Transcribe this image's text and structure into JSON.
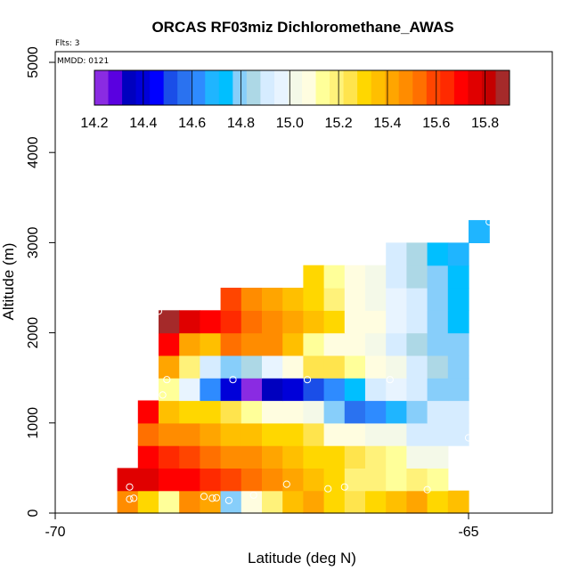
{
  "chart_data": {
    "type": "heatmap",
    "title": "ORCAS RF03miz Dichloromethane_AWAS",
    "flights_note": "Flts: 3",
    "date_note": "MMDD: 0121",
    "xlabel": "Latitude (deg N)",
    "ylabel": "Altitude (m)",
    "xlim": [
      -70,
      -64
    ],
    "ylim": [
      0,
      5200
    ],
    "xticks": [
      -70,
      -65
    ],
    "xtick_labels": [
      "-70",
      "-65"
    ],
    "yticks": [
      0,
      1000,
      2000,
      3000,
      4000,
      5000
    ],
    "ytick_labels": [
      "0",
      "1000",
      "2000",
      "3000",
      "4000",
      "5000"
    ],
    "grid": false,
    "colorbar": {
      "min": 14.2,
      "max": 15.9,
      "ticks": [
        14.2,
        14.4,
        14.6,
        14.8,
        15.0,
        15.2,
        15.4,
        15.6,
        15.8
      ],
      "tick_labels": [
        "14.2",
        "14.4",
        "14.6",
        "14.8",
        "15.0",
        "15.2",
        "15.4",
        "15.6",
        "15.8"
      ],
      "colors": [
        "#8a2be2",
        "#5a00e0",
        "#0000bf",
        "#0000d9",
        "#0000ff",
        "#1a4ee8",
        "#2a72f0",
        "#2e8bff",
        "#1fb5ff",
        "#00bfff",
        "#87cefa",
        "#add8e6",
        "#d6ecff",
        "#e8f4ff",
        "#f4f9e8",
        "#fffde0",
        "#ffff99",
        "#fff27a",
        "#ffe44d",
        "#ffd700",
        "#ffbf00",
        "#ffa500",
        "#ff8c00",
        "#ff7000",
        "#ff4500",
        "#ff2a00",
        "#ff0000",
        "#e00000",
        "#c40000",
        "#a52a2a"
      ]
    },
    "cell_dx": 0.25,
    "cell_dy": 250,
    "cells": [
      {
        "lat": -69.25,
        "alt": 0,
        "value": 15.45
      },
      {
        "lat": -69.0,
        "alt": 0,
        "value": 15.3
      },
      {
        "lat": -68.75,
        "alt": 0,
        "value": 15.12
      },
      {
        "lat": -68.5,
        "alt": 0,
        "value": 15.45
      },
      {
        "lat": -68.25,
        "alt": 0,
        "value": 15.4
      },
      {
        "lat": -68.0,
        "alt": 0,
        "value": 14.8
      },
      {
        "lat": -67.75,
        "alt": 0,
        "value": 15.05
      },
      {
        "lat": -67.5,
        "alt": 0,
        "value": 15.2
      },
      {
        "lat": -67.25,
        "alt": 0,
        "value": 15.35
      },
      {
        "lat": -67.0,
        "alt": 0,
        "value": 15.4
      },
      {
        "lat": -66.75,
        "alt": 0,
        "value": 15.3
      },
      {
        "lat": -66.5,
        "alt": 0,
        "value": 15.25
      },
      {
        "lat": -66.25,
        "alt": 0,
        "value": 15.3
      },
      {
        "lat": -66.0,
        "alt": 0,
        "value": 15.35
      },
      {
        "lat": -65.75,
        "alt": 0,
        "value": 15.4
      },
      {
        "lat": -65.5,
        "alt": 0,
        "value": 15.3
      },
      {
        "lat": -65.25,
        "alt": 0,
        "value": 15.35
      },
      {
        "lat": -69.25,
        "alt": 250,
        "value": 15.78
      },
      {
        "lat": -69.0,
        "alt": 250,
        "value": 15.75
      },
      {
        "lat": -68.75,
        "alt": 250,
        "value": 15.7
      },
      {
        "lat": -68.5,
        "alt": 250,
        "value": 15.68
      },
      {
        "lat": -68.25,
        "alt": 250,
        "value": 15.62
      },
      {
        "lat": -68.0,
        "alt": 250,
        "value": 15.57
      },
      {
        "lat": -67.75,
        "alt": 250,
        "value": 15.52
      },
      {
        "lat": -67.5,
        "alt": 250,
        "value": 15.47
      },
      {
        "lat": -67.25,
        "alt": 250,
        "value": 15.42
      },
      {
        "lat": -67.0,
        "alt": 250,
        "value": 15.37
      },
      {
        "lat": -66.75,
        "alt": 250,
        "value": 15.32
      },
      {
        "lat": -66.5,
        "alt": 250,
        "value": 15.2
      },
      {
        "lat": -66.25,
        "alt": 250,
        "value": 15.18
      },
      {
        "lat": -66.0,
        "alt": 250,
        "value": 15.15
      },
      {
        "lat": -65.75,
        "alt": 250,
        "value": 15.17
      },
      {
        "lat": -65.5,
        "alt": 250,
        "value": 15.16
      },
      {
        "lat": -69.0,
        "alt": 500,
        "value": 15.68
      },
      {
        "lat": -68.75,
        "alt": 500,
        "value": 15.65
      },
      {
        "lat": -68.5,
        "alt": 500,
        "value": 15.6
      },
      {
        "lat": -68.25,
        "alt": 500,
        "value": 15.55
      },
      {
        "lat": -68.0,
        "alt": 500,
        "value": 15.5
      },
      {
        "lat": -67.75,
        "alt": 500,
        "value": 15.45
      },
      {
        "lat": -67.5,
        "alt": 500,
        "value": 15.4
      },
      {
        "lat": -67.25,
        "alt": 500,
        "value": 15.37
      },
      {
        "lat": -67.0,
        "alt": 500,
        "value": 15.32
      },
      {
        "lat": -66.75,
        "alt": 500,
        "value": 15.28
      },
      {
        "lat": -66.5,
        "alt": 500,
        "value": 15.25
      },
      {
        "lat": -66.25,
        "alt": 500,
        "value": 15.2
      },
      {
        "lat": -66.0,
        "alt": 500,
        "value": 15.12
      },
      {
        "lat": -65.75,
        "alt": 500,
        "value": 15.0
      },
      {
        "lat": -65.5,
        "alt": 500,
        "value": 15.0
      },
      {
        "lat": -69.0,
        "alt": 750,
        "value": 15.52
      },
      {
        "lat": -68.75,
        "alt": 750,
        "value": 15.5
      },
      {
        "lat": -68.5,
        "alt": 750,
        "value": 15.47
      },
      {
        "lat": -68.25,
        "alt": 750,
        "value": 15.42
      },
      {
        "lat": -68.0,
        "alt": 750,
        "value": 15.38
      },
      {
        "lat": -67.75,
        "alt": 750,
        "value": 15.35
      },
      {
        "lat": -67.5,
        "alt": 750,
        "value": 15.3
      },
      {
        "lat": -67.25,
        "alt": 750,
        "value": 15.28
      },
      {
        "lat": -67.0,
        "alt": 750,
        "value": 15.22
      },
      {
        "lat": -66.75,
        "alt": 750,
        "value": 15.1
      },
      {
        "lat": -66.5,
        "alt": 750,
        "value": 15.06
      },
      {
        "lat": -66.25,
        "alt": 750,
        "value": 15.0
      },
      {
        "lat": -66.0,
        "alt": 750,
        "value": 15.0
      },
      {
        "lat": -65.75,
        "alt": 750,
        "value": 14.88
      },
      {
        "lat": -65.5,
        "alt": 750,
        "value": 14.93
      },
      {
        "lat": -65.25,
        "alt": 750,
        "value": 14.93
      },
      {
        "lat": -69.0,
        "alt": 1000,
        "value": 15.72
      },
      {
        "lat": -68.75,
        "alt": 1000,
        "value": 15.38
      },
      {
        "lat": -68.5,
        "alt": 1000,
        "value": 15.33
      },
      {
        "lat": -68.25,
        "alt": 1000,
        "value": 15.28
      },
      {
        "lat": -68.0,
        "alt": 1000,
        "value": 15.22
      },
      {
        "lat": -67.75,
        "alt": 1000,
        "value": 15.15
      },
      {
        "lat": -67.5,
        "alt": 1000,
        "value": 15.1
      },
      {
        "lat": -67.25,
        "alt": 1000,
        "value": 15.05
      },
      {
        "lat": -67.0,
        "alt": 1000,
        "value": 15.0
      },
      {
        "lat": -66.75,
        "alt": 1000,
        "value": 14.78
      },
      {
        "lat": -66.5,
        "alt": 1000,
        "value": 14.55
      },
      {
        "lat": -66.25,
        "alt": 1000,
        "value": 14.62
      },
      {
        "lat": -66.0,
        "alt": 1000,
        "value": 14.7
      },
      {
        "lat": -65.75,
        "alt": 1000,
        "value": 14.8
      },
      {
        "lat": -65.5,
        "alt": 1000,
        "value": 14.88
      },
      {
        "lat": -65.25,
        "alt": 1000,
        "value": 14.88
      },
      {
        "lat": -68.75,
        "alt": 1250,
        "value": 15.12
      },
      {
        "lat": -68.5,
        "alt": 1250,
        "value": 14.98
      },
      {
        "lat": -68.25,
        "alt": 1250,
        "value": 14.6
      },
      {
        "lat": -68.0,
        "alt": 1250,
        "value": 14.4
      },
      {
        "lat": -67.75,
        "alt": 1250,
        "value": 14.25
      },
      {
        "lat": -67.5,
        "alt": 1250,
        "value": 14.35
      },
      {
        "lat": -67.25,
        "alt": 1250,
        "value": 14.4
      },
      {
        "lat": -67.0,
        "alt": 1250,
        "value": 14.5
      },
      {
        "lat": -66.75,
        "alt": 1250,
        "value": 14.65
      },
      {
        "lat": -66.5,
        "alt": 1250,
        "value": 14.72
      },
      {
        "lat": -66.25,
        "alt": 1250,
        "value": 14.88
      },
      {
        "lat": -66.0,
        "alt": 1250,
        "value": 14.97
      },
      {
        "lat": -65.75,
        "alt": 1250,
        "value": 14.9
      },
      {
        "lat": -65.5,
        "alt": 1250,
        "value": 14.8
      },
      {
        "lat": -65.25,
        "alt": 1250,
        "value": 14.82
      },
      {
        "lat": -68.75,
        "alt": 1500,
        "value": 15.42
      },
      {
        "lat": -68.5,
        "alt": 1500,
        "value": 15.18
      },
      {
        "lat": -68.25,
        "alt": 1500,
        "value": 14.92
      },
      {
        "lat": -68.0,
        "alt": 1500,
        "value": 14.78
      },
      {
        "lat": -67.75,
        "alt": 1500,
        "value": 14.85
      },
      {
        "lat": -67.5,
        "alt": 1500,
        "value": 14.97
      },
      {
        "lat": -67.25,
        "alt": 1500,
        "value": 15.07
      },
      {
        "lat": -67.0,
        "alt": 1500,
        "value": 15.22
      },
      {
        "lat": -66.75,
        "alt": 1500,
        "value": 15.22
      },
      {
        "lat": -66.5,
        "alt": 1500,
        "value": 15.14
      },
      {
        "lat": -66.25,
        "alt": 1500,
        "value": 15.1
      },
      {
        "lat": -66.0,
        "alt": 1500,
        "value": 15.02
      },
      {
        "lat": -65.75,
        "alt": 1500,
        "value": 14.9
      },
      {
        "lat": -65.5,
        "alt": 1500,
        "value": 14.85
      },
      {
        "lat": -65.25,
        "alt": 1500,
        "value": 14.8
      },
      {
        "lat": -68.75,
        "alt": 1750,
        "value": 15.68
      },
      {
        "lat": -68.5,
        "alt": 1750,
        "value": 15.4
      },
      {
        "lat": -68.25,
        "alt": 1750,
        "value": 15.38
      },
      {
        "lat": -68.0,
        "alt": 1750,
        "value": 15.55
      },
      {
        "lat": -67.75,
        "alt": 1750,
        "value": 15.5
      },
      {
        "lat": -67.5,
        "alt": 1750,
        "value": 15.45
      },
      {
        "lat": -67.25,
        "alt": 1750,
        "value": 15.35
      },
      {
        "lat": -67.0,
        "alt": 1750,
        "value": 15.15
      },
      {
        "lat": -66.75,
        "alt": 1750,
        "value": 15.1
      },
      {
        "lat": -66.5,
        "alt": 1750,
        "value": 15.05
      },
      {
        "lat": -66.25,
        "alt": 1750,
        "value": 15.0
      },
      {
        "lat": -66.0,
        "alt": 1750,
        "value": 14.93
      },
      {
        "lat": -65.75,
        "alt": 1750,
        "value": 14.86
      },
      {
        "lat": -65.5,
        "alt": 1750,
        "value": 14.8
      },
      {
        "lat": -65.25,
        "alt": 1750,
        "value": 14.78
      },
      {
        "lat": -68.75,
        "alt": 2000,
        "value": 15.87
      },
      {
        "lat": -68.5,
        "alt": 2000,
        "value": 15.77
      },
      {
        "lat": -68.25,
        "alt": 2000,
        "value": 15.72
      },
      {
        "lat": -68.0,
        "alt": 2000,
        "value": 15.65
      },
      {
        "lat": -67.75,
        "alt": 2000,
        "value": 15.55
      },
      {
        "lat": -67.5,
        "alt": 2000,
        "value": 15.47
      },
      {
        "lat": -67.25,
        "alt": 2000,
        "value": 15.4
      },
      {
        "lat": -67.0,
        "alt": 2000,
        "value": 15.35
      },
      {
        "lat": -66.75,
        "alt": 2000,
        "value": 15.28
      },
      {
        "lat": -66.5,
        "alt": 2000,
        "value": 15.1
      },
      {
        "lat": -66.25,
        "alt": 2000,
        "value": 15.05
      },
      {
        "lat": -66.0,
        "alt": 2000,
        "value": 14.95
      },
      {
        "lat": -65.75,
        "alt": 2000,
        "value": 14.88
      },
      {
        "lat": -65.5,
        "alt": 2000,
        "value": 14.8
      },
      {
        "lat": -65.25,
        "alt": 2000,
        "value": 14.75
      },
      {
        "lat": -68.0,
        "alt": 2250,
        "value": 15.57
      },
      {
        "lat": -67.75,
        "alt": 2250,
        "value": 15.5
      },
      {
        "lat": -67.5,
        "alt": 2250,
        "value": 15.42
      },
      {
        "lat": -67.25,
        "alt": 2250,
        "value": 15.35
      },
      {
        "lat": -67.0,
        "alt": 2250,
        "value": 15.28
      },
      {
        "lat": -66.75,
        "alt": 2250,
        "value": 15.17
      },
      {
        "lat": -66.5,
        "alt": 2250,
        "value": 15.08
      },
      {
        "lat": -66.25,
        "alt": 2250,
        "value": 15.02
      },
      {
        "lat": -66.0,
        "alt": 2250,
        "value": 14.95
      },
      {
        "lat": -65.75,
        "alt": 2250,
        "value": 14.88
      },
      {
        "lat": -65.5,
        "alt": 2250,
        "value": 14.8
      },
      {
        "lat": -65.25,
        "alt": 2250,
        "value": 14.72
      },
      {
        "lat": -67.0,
        "alt": 2500,
        "value": 15.3
      },
      {
        "lat": -66.75,
        "alt": 2500,
        "value": 15.15
      },
      {
        "lat": -66.5,
        "alt": 2500,
        "value": 15.08
      },
      {
        "lat": -66.25,
        "alt": 2500,
        "value": 15.0
      },
      {
        "lat": -66.0,
        "alt": 2500,
        "value": 14.9
      },
      {
        "lat": -65.75,
        "alt": 2500,
        "value": 14.85
      },
      {
        "lat": -65.5,
        "alt": 2500,
        "value": 14.78
      },
      {
        "lat": -65.25,
        "alt": 2500,
        "value": 14.72
      },
      {
        "lat": -66.0,
        "alt": 2750,
        "value": 14.88
      },
      {
        "lat": -65.75,
        "alt": 2750,
        "value": 14.83
      },
      {
        "lat": -65.5,
        "alt": 2750,
        "value": 14.76
      },
      {
        "lat": -65.25,
        "alt": 2750,
        "value": 14.7
      },
      {
        "lat": -65.0,
        "alt": 3000,
        "value": 14.66
      }
    ],
    "samples": [
      {
        "lat": -69.1,
        "alt": 155
      },
      {
        "lat": -69.05,
        "alt": 165
      },
      {
        "lat": -69.1,
        "alt": 290
      },
      {
        "lat": -68.2,
        "alt": 185
      },
      {
        "lat": -68.1,
        "alt": 165
      },
      {
        "lat": -68.05,
        "alt": 170
      },
      {
        "lat": -67.9,
        "alt": 140
      },
      {
        "lat": -67.6,
        "alt": 200
      },
      {
        "lat": -67.2,
        "alt": 320
      },
      {
        "lat": -66.7,
        "alt": 270
      },
      {
        "lat": -66.5,
        "alt": 290
      },
      {
        "lat": -65.5,
        "alt": 260
      },
      {
        "lat": -65.0,
        "alt": 835
      },
      {
        "lat": -65.95,
        "alt": 1480
      },
      {
        "lat": -66.95,
        "alt": 1480
      },
      {
        "lat": -67.85,
        "alt": 1480
      },
      {
        "lat": -68.65,
        "alt": 1480
      },
      {
        "lat": -68.7,
        "alt": 1310
      },
      {
        "lat": -68.75,
        "alt": 2240
      },
      {
        "lat": -64.75,
        "alt": 3230
      }
    ]
  }
}
